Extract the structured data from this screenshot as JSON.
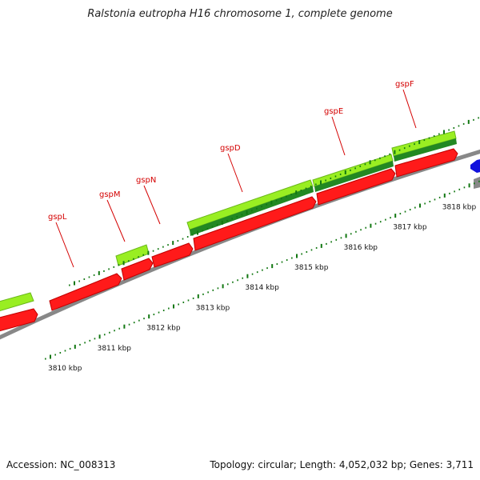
{
  "title": "Ralstonia eutropha H16 chromosome 1, complete genome",
  "footer": {
    "accession": "Accession: NC_008313",
    "summary": "Topology: circular; Length: 4,052,032 bp; Genes: 3,711"
  },
  "genes": [
    {
      "label": "gspL",
      "kbp": 3812.18
    },
    {
      "label": "gspM",
      "kbp": 3813.02
    },
    {
      "label": "gspN",
      "kbp": 3813.55
    },
    {
      "label": "gspD",
      "kbp": 3815.05
    },
    {
      "label": "gspE",
      "kbp": 3816.95
    },
    {
      "label": "gspF",
      "kbp": 3818.45
    }
  ],
  "scale_ticks": [
    {
      "label": "3810 kbp",
      "kbp": 3810
    },
    {
      "label": "3811 kbp",
      "kbp": 3811
    },
    {
      "label": "3812 kbp",
      "kbp": 3812
    },
    {
      "label": "3813 kbp",
      "kbp": 3813
    },
    {
      "label": "3814 kbp",
      "kbp": 3814
    },
    {
      "label": "3815 kbp",
      "kbp": 3815
    },
    {
      "label": "3816 kbp",
      "kbp": 3816
    },
    {
      "label": "3817 kbp",
      "kbp": 3817
    },
    {
      "label": "3818 kbp",
      "kbp": 3818
    }
  ],
  "colors": {
    "gene_label": "#d40000",
    "gene_red": "#ff1a1a",
    "cds_lime": "#99ee22",
    "cds_green": "#228822",
    "backbone": "#888888",
    "tick": "#117711",
    "other_feature": "#1111dd"
  }
}
